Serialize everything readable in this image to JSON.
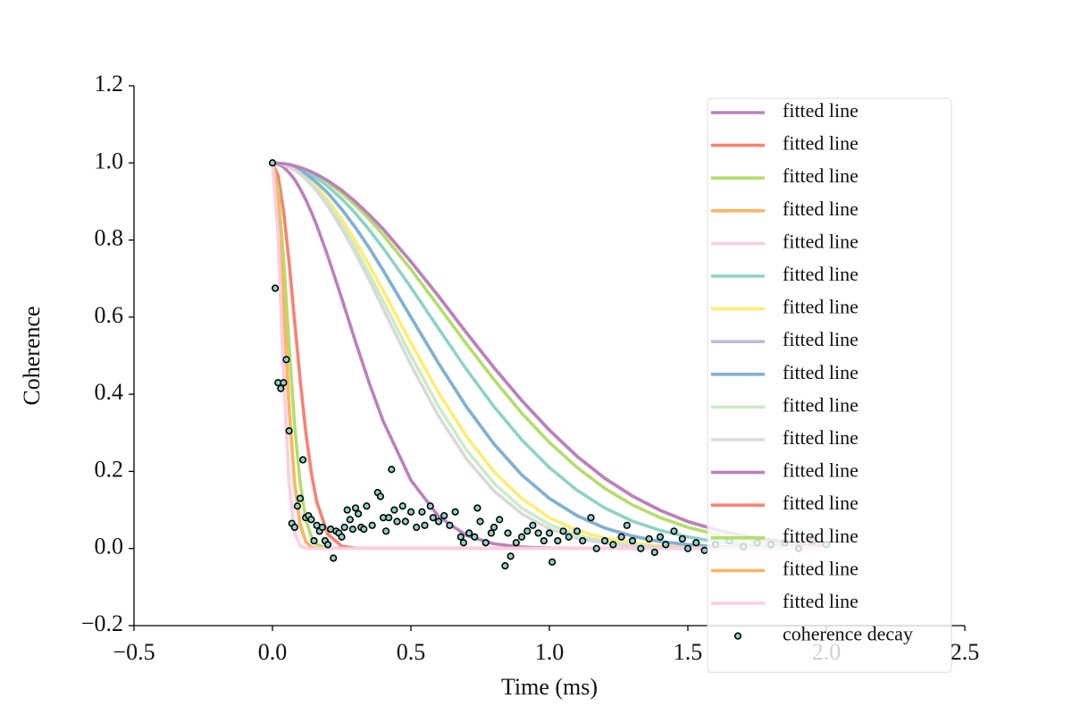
{
  "chart_data": {
    "type": "line",
    "xlabel": "Time (ms)",
    "ylabel": "Coherence",
    "xlim": [
      -0.5,
      2.5
    ],
    "ylim": [
      -0.2,
      1.2
    ],
    "xticks": [
      {
        "value": -0.5,
        "label": "−0.5"
      },
      {
        "value": 0,
        "label": "0.0"
      },
      0.5,
      {
        "value": 1.0,
        "label": "1.0"
      },
      1.5,
      {
        "value": 2.0,
        "label": "2.0"
      },
      2.5
    ],
    "yticks": [
      {
        "value": -0.2,
        "label": "−0.2"
      },
      {
        "value": 0,
        "label": "0.0"
      },
      0.2,
      0.4,
      0.6,
      0.8,
      {
        "value": 1.0,
        "label": "1.0"
      },
      1.2
    ],
    "legend": "upper right",
    "x": [
      0,
      0.02,
      0.04,
      0.06,
      0.08,
      0.1,
      0.12,
      0.14,
      0.16,
      0.2,
      0.25,
      0.3,
      0.35,
      0.4,
      0.5,
      0.6,
      0.7,
      0.8,
      0.9,
      1.0,
      1.1,
      1.2,
      1.3,
      1.4,
      1.5,
      1.6,
      1.7,
      1.8,
      1.9,
      2.0
    ],
    "series": [
      {
        "name": "fitted line",
        "color": "#bc80bd",
        "values": [
          1,
          0.997,
          0.989,
          0.975,
          0.957,
          0.933,
          0.905,
          0.873,
          0.838,
          0.758,
          0.649,
          0.536,
          0.428,
          0.33,
          0.177,
          0.083,
          0.034,
          0.012,
          0.004,
          0.001,
          0,
          0,
          0,
          0,
          0,
          0,
          0,
          0,
          0,
          0
        ]
      },
      {
        "name": "fitted line",
        "color": "#fb8072",
        "values": [
          1,
          0.999,
          0.998,
          0.996,
          0.992,
          0.988,
          0.983,
          0.977,
          0.97,
          0.954,
          0.929,
          0.899,
          0.865,
          0.828,
          0.744,
          0.654,
          0.56,
          0.469,
          0.384,
          0.307,
          0.239,
          0.182,
          0.136,
          0.099,
          0.07,
          0.049,
          0.033,
          0.022,
          0.014,
          0.009
        ]
      },
      {
        "name": "fitted line",
        "color": "#b3de69",
        "values": [
          1,
          0.999,
          0.998,
          0.995,
          0.992,
          0.987,
          0.982,
          0.975,
          0.967,
          0.95,
          0.922,
          0.89,
          0.854,
          0.813,
          0.724,
          0.628,
          0.531,
          0.438,
          0.351,
          0.275,
          0.21,
          0.156,
          0.113,
          0.08,
          0.055,
          0.037,
          0.024,
          0.015,
          0.009,
          0.006
        ]
      },
      {
        "name": "fitted line",
        "color": "#fdb462",
        "values": [
          1,
          0.895,
          0.641,
          0.368,
          0.169,
          0.062,
          0.018,
          0.004,
          0.001,
          0,
          0,
          0,
          0,
          0,
          0,
          0,
          0,
          0,
          0,
          0,
          0,
          0,
          0,
          0,
          0,
          0,
          0,
          0,
          0,
          0
        ]
      },
      {
        "name": "fitted line",
        "color": "#fccde5",
        "values": [
          1,
          0.821,
          0.454,
          0.169,
          0.042,
          0.007,
          0.001,
          0,
          0,
          0,
          0,
          0,
          0,
          0,
          0,
          0,
          0,
          0,
          0,
          0,
          0,
          0,
          0,
          0,
          0,
          0,
          0,
          0,
          0,
          0
        ]
      },
      {
        "name": "fitted line",
        "color": "#8dd3c7",
        "values": [
          1,
          0.999,
          0.998,
          0.994,
          0.99,
          0.985,
          0.978,
          0.97,
          0.961,
          0.939,
          0.907,
          0.869,
          0.826,
          0.779,
          0.677,
          0.57,
          0.465,
          0.368,
          0.282,
          0.21,
          0.151,
          0.105,
          0.071,
          0.047,
          0.03,
          0.018,
          0.011,
          0.006,
          0.004,
          0.002
        ]
      },
      {
        "name": "fitted line",
        "color": "#ffed6f",
        "values": [
          1,
          0.999,
          0.996,
          0.991,
          0.984,
          0.975,
          0.964,
          0.952,
          0.938,
          0.904,
          0.854,
          0.797,
          0.734,
          0.668,
          0.533,
          0.404,
          0.291,
          0.199,
          0.13,
          0.08,
          0.047,
          0.027,
          0.014,
          0.007,
          0.003,
          0.002,
          0.001,
          0,
          0,
          0
        ]
      },
      {
        "name": "fitted line",
        "color": "#bebada",
        "values": [
          1,
          0.999,
          0.997,
          0.993,
          0.987,
          0.98,
          0.971,
          0.961,
          0.949,
          0.922,
          0.88,
          0.832,
          0.779,
          0.721,
          0.6,
          0.48,
          0.368,
          0.271,
          0.191,
          0.13,
          0.085,
          0.053,
          0.032,
          0.018,
          0.01,
          0.005,
          0.003,
          0.001,
          0.001,
          0
        ]
      },
      {
        "name": "fitted line",
        "color": "#80b1d3",
        "values": [
          1,
          0.999,
          0.997,
          0.993,
          0.987,
          0.98,
          0.971,
          0.961,
          0.949,
          0.922,
          0.88,
          0.832,
          0.779,
          0.721,
          0.6,
          0.48,
          0.368,
          0.271,
          0.191,
          0.13,
          0.085,
          0.053,
          0.032,
          0.018,
          0.01,
          0.005,
          0.003,
          0.001,
          0.001,
          0
        ]
      },
      {
        "name": "fitted line",
        "color": "#ccebc5",
        "values": [
          1,
          0.999,
          0.996,
          0.99,
          0.982,
          0.973,
          0.961,
          0.947,
          0.931,
          0.895,
          0.841,
          0.779,
          0.712,
          0.641,
          0.5,
          0.368,
          0.256,
          0.169,
          0.105,
          0.062,
          0.035,
          0.018,
          0.009,
          0.004,
          0.002,
          0.001,
          0,
          0,
          0,
          0
        ]
      },
      {
        "name": "fitted line",
        "color": "#d9d9d9",
        "values": [
          1,
          0.999,
          0.995,
          0.989,
          0.981,
          0.971,
          0.958,
          0.943,
          0.927,
          0.888,
          0.83,
          0.765,
          0.695,
          0.621,
          0.476,
          0.343,
          0.233,
          0.149,
          0.09,
          0.051,
          0.027,
          0.014,
          0.007,
          0.003,
          0.001,
          0,
          0,
          0,
          0,
          0
        ]
      },
      {
        "name": "fitted line",
        "color": "#bc80bd",
        "values": [
          1,
          0.999,
          0.998,
          0.996,
          0.992,
          0.988,
          0.983,
          0.977,
          0.97,
          0.954,
          0.929,
          0.899,
          0.865,
          0.828,
          0.744,
          0.654,
          0.56,
          0.469,
          0.384,
          0.307,
          0.239,
          0.182,
          0.136,
          0.099,
          0.07,
          0.049,
          0.033,
          0.022,
          0.014,
          0.009
        ]
      },
      {
        "name": "fitted line",
        "color": "#fb8072",
        "values": [
          1,
          0.968,
          0.876,
          0.743,
          0.589,
          0.438,
          0.304,
          0.198,
          0.121,
          0.037,
          0.006,
          0.001,
          0,
          0,
          0,
          0,
          0,
          0,
          0,
          0,
          0,
          0,
          0,
          0,
          0,
          0,
          0,
          0,
          0,
          0
        ]
      },
      {
        "name": "fitted line",
        "color": "#b3de69",
        "values": [
          1,
          0.931,
          0.753,
          0.527,
          0.32,
          0.169,
          0.077,
          0.031,
          0.011,
          0.001,
          0,
          0,
          0,
          0,
          0,
          0,
          0,
          0,
          0,
          0,
          0,
          0,
          0,
          0,
          0,
          0,
          0,
          0,
          0,
          0
        ]
      },
      {
        "name": "fitted line",
        "color": "#fdb462",
        "values": [
          1,
          0.895,
          0.641,
          0.368,
          0.169,
          0.062,
          0.018,
          0.004,
          0.001,
          0,
          0,
          0,
          0,
          0,
          0,
          0,
          0,
          0,
          0,
          0,
          0,
          0,
          0,
          0,
          0,
          0,
          0,
          0,
          0,
          0
        ]
      },
      {
        "name": "fitted line",
        "color": "#fccde5",
        "values": [
          1,
          0.821,
          0.454,
          0.169,
          0.042,
          0.007,
          0.001,
          0,
          0,
          0,
          0,
          0,
          0,
          0,
          0,
          0,
          0,
          0,
          0,
          0,
          0,
          0,
          0,
          0,
          0,
          0,
          0,
          0,
          0,
          0
        ]
      },
      {
        "name": "coherence decay",
        "type": "scatter",
        "color": "#8dd3c7",
        "x": [
          0,
          0.01,
          0.02,
          0.03,
          0.04,
          0.05,
          0.06,
          0.07,
          0.08,
          0.09,
          0.1,
          0.11,
          0.12,
          0.13,
          0.14,
          0.15,
          0.16,
          0.17,
          0.18,
          0.19,
          0.2,
          0.21,
          0.22,
          0.23,
          0.24,
          0.25,
          0.26,
          0.27,
          0.28,
          0.29,
          0.3,
          0.31,
          0.32,
          0.33,
          0.34,
          0.36,
          0.38,
          0.39,
          0.4,
          0.41,
          0.42,
          0.43,
          0.44,
          0.45,
          0.47,
          0.48,
          0.5,
          0.52,
          0.54,
          0.55,
          0.57,
          0.58,
          0.6,
          0.62,
          0.64,
          0.66,
          0.68,
          0.69,
          0.71,
          0.73,
          0.74,
          0.75,
          0.77,
          0.79,
          0.8,
          0.82,
          0.84,
          0.85,
          0.86,
          0.88,
          0.9,
          0.92,
          0.94,
          0.96,
          0.98,
          1.0,
          1.01,
          1.03,
          1.05,
          1.07,
          1.1,
          1.12,
          1.15,
          1.17,
          1.2,
          1.23,
          1.26,
          1.28,
          1.3,
          1.33,
          1.36,
          1.38,
          1.4,
          1.42,
          1.45,
          1.48,
          1.5,
          1.53,
          1.56,
          1.6,
          1.65,
          1.7,
          1.75,
          1.8,
          1.85,
          1.9,
          1.95,
          2.0
        ],
        "values": [
          1.0,
          0.675,
          0.43,
          0.415,
          0.43,
          0.49,
          0.305,
          0.065,
          0.055,
          0.11,
          0.13,
          0.23,
          0.08,
          0.085,
          0.075,
          0.02,
          0.06,
          0.045,
          0.055,
          0.02,
          0.01,
          0.05,
          -0.025,
          0.045,
          0.04,
          0.03,
          0.055,
          0.1,
          0.075,
          0.05,
          0.105,
          0.09,
          0.055,
          0.05,
          0.11,
          0.06,
          0.145,
          0.135,
          0.08,
          0.045,
          0.08,
          0.205,
          0.1,
          0.07,
          0.11,
          0.07,
          0.095,
          0.055,
          0.095,
          0.06,
          0.11,
          0.08,
          0.07,
          0.085,
          0.06,
          0.095,
          0.03,
          0.015,
          0.04,
          0.03,
          0.105,
          0.07,
          0.015,
          0.04,
          0.055,
          0.075,
          -0.045,
          0.04,
          -0.02,
          0.015,
          0.03,
          0.045,
          0.06,
          0.04,
          0.02,
          0.04,
          -0.035,
          0.02,
          0.045,
          0.03,
          0.045,
          0.02,
          0.08,
          0.0,
          0.02,
          0.01,
          0.03,
          0.06,
          0.02,
          0.0,
          0.025,
          -0.01,
          0.03,
          0.01,
          0.045,
          0.025,
          0.0,
          0.015,
          -0.005,
          0.01,
          0.02,
          0.005,
          0.015,
          0.01,
          0.015,
          0.0,
          0.02,
          0.01
        ]
      }
    ]
  }
}
